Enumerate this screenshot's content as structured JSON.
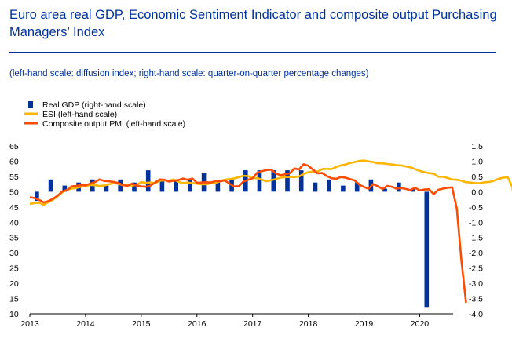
{
  "title": "Euro area real GDP, Economic Sentiment Indicator and composite output Purchasing Managers’ Index",
  "subtitle": "(left-hand scale: diffusion index; right-hand scale: quarter-on-quarter percentage changes)",
  "chart_data": {
    "type": "bar+line",
    "legend": [
      {
        "label": "Real GDP (right-hand scale)",
        "kind": "bar",
        "color": "#003299"
      },
      {
        "label": "ESI (left-hand scale)",
        "kind": "line",
        "color": "#FFB400"
      },
      {
        "label": "Composite output PMI (left-hand scale)",
        "kind": "line",
        "color": "#FF4B00"
      }
    ],
    "x_ticks": [
      "2013",
      "2014",
      "2015",
      "2016",
      "2017",
      "2018",
      "2019",
      "2020"
    ],
    "x_range": [
      2013.0,
      2020.6
    ],
    "left_axis": {
      "min": 10,
      "max": 65,
      "ticks": [
        10,
        15,
        20,
        25,
        30,
        35,
        40,
        45,
        50,
        55,
        60,
        65
      ]
    },
    "right_axis": {
      "min": -4.0,
      "max": 1.5,
      "ticks": [
        "1.5",
        "1.0",
        "0.5",
        "0.0",
        "-0.5",
        "-1.0",
        "-1.5",
        "-2.0",
        "-2.5",
        "-3.0",
        "-3.5",
        "-4.0"
      ]
    },
    "gdp": {
      "quarters": [
        "2013Q1",
        "2013Q2",
        "2013Q3",
        "2013Q4",
        "2014Q1",
        "2014Q2",
        "2014Q3",
        "2014Q4",
        "2015Q1",
        "2015Q2",
        "2015Q3",
        "2015Q4",
        "2016Q1",
        "2016Q2",
        "2016Q3",
        "2016Q4",
        "2017Q1",
        "2017Q2",
        "2017Q3",
        "2017Q4",
        "2018Q1",
        "2018Q2",
        "2018Q3",
        "2018Q4",
        "2019Q1",
        "2019Q2",
        "2019Q3",
        "2019Q4",
        "2020Q1"
      ],
      "values": [
        -0.3,
        0.4,
        0.2,
        0.3,
        0.4,
        0.2,
        0.4,
        0.3,
        0.7,
        0.4,
        0.4,
        0.4,
        0.6,
        0.3,
        0.4,
        0.7,
        0.7,
        0.7,
        0.7,
        0.7,
        0.3,
        0.4,
        0.2,
        0.3,
        0.4,
        0.1,
        0.3,
        0.1,
        -3.8
      ]
    },
    "esi": [
      46.0,
      46.3,
      46.4,
      45.7,
      46.6,
      47.4,
      48.6,
      49.8,
      50.6,
      51.0,
      51.2,
      51.6,
      51.8,
      52.2,
      52.1,
      51.9,
      52.0,
      52.4,
      52.8,
      52.6,
      52.1,
      52.2,
      52.0,
      52.2,
      53.1,
      52.9,
      53.0,
      52.8,
      53.6,
      53.7,
      53.6,
      54.0,
      53.2,
      52.8,
      53.0,
      52.8,
      52.6,
      52.4,
      52.4,
      52.8,
      52.8,
      53.5,
      53.9,
      54.1,
      54.3,
      54.8,
      55.2,
      55.1,
      54.4,
      54.5,
      53.9,
      53.4,
      53.8,
      54.1,
      54.6,
      54.8,
      54.8,
      54.8,
      55.0,
      55.8,
      56.4,
      56.6,
      56.6,
      57.4,
      57.5,
      57.4,
      58.1,
      58.6,
      58.9,
      59.4,
      59.7,
      60.1,
      60.2,
      59.9,
      59.7,
      59.3,
      59.3,
      59.1,
      58.9,
      58.7,
      58.6,
      58.3,
      58.0,
      57.4,
      56.8,
      56.4,
      56.1,
      55.9,
      54.9,
      54.9,
      54.5,
      54.0,
      53.9,
      53.6,
      53.1,
      53.0,
      52.8,
      52.8,
      53.1,
      53.2,
      53.6,
      54.2,
      54.6,
      54.7,
      51.4,
      35.2
    ],
    "pmi": [
      48.2,
      47.9,
      47.3,
      46.5,
      46.9,
      47.7,
      48.7,
      50.1,
      50.5,
      51.7,
      51.9,
      52.1,
      52.1,
      52.6,
      53.1,
      54.0,
      53.5,
      53.4,
      53.2,
      52.9,
      52.2,
      51.9,
      52.6,
      52.0,
      51.7,
      51.6,
      52.0,
      53.0,
      54.0,
      53.9,
      53.3,
      53.6,
      53.8,
      54.3,
      53.9,
      54.3,
      52.9,
      53.0,
      53.1,
      53.0,
      53.5,
      53.4,
      53.7,
      52.7,
      51.7,
      51.8,
      53.3,
      53.9,
      54.4,
      56.2,
      56.7,
      57.1,
      57.2,
      56.0,
      55.4,
      55.7,
      56.0,
      57.6,
      57.3,
      59.0,
      58.5,
      57.2,
      56.0,
      56.1,
      55.1,
      54.4,
      54.2,
      54.8,
      54.6,
      54.1,
      53.7,
      52.3,
      51.5,
      51.0,
      52.5,
      51.7,
      50.9,
      51.9,
      51.6,
      51.0,
      51.2,
      50.9,
      50.5,
      51.3,
      50.4,
      50.7,
      50.8,
      49.2,
      50.6,
      51.0,
      51.3,
      51.4,
      44.5,
      27.4,
      13.6
    ],
    "esi_extra": [],
    "start": 2013.0,
    "step": 0.08333333
  }
}
